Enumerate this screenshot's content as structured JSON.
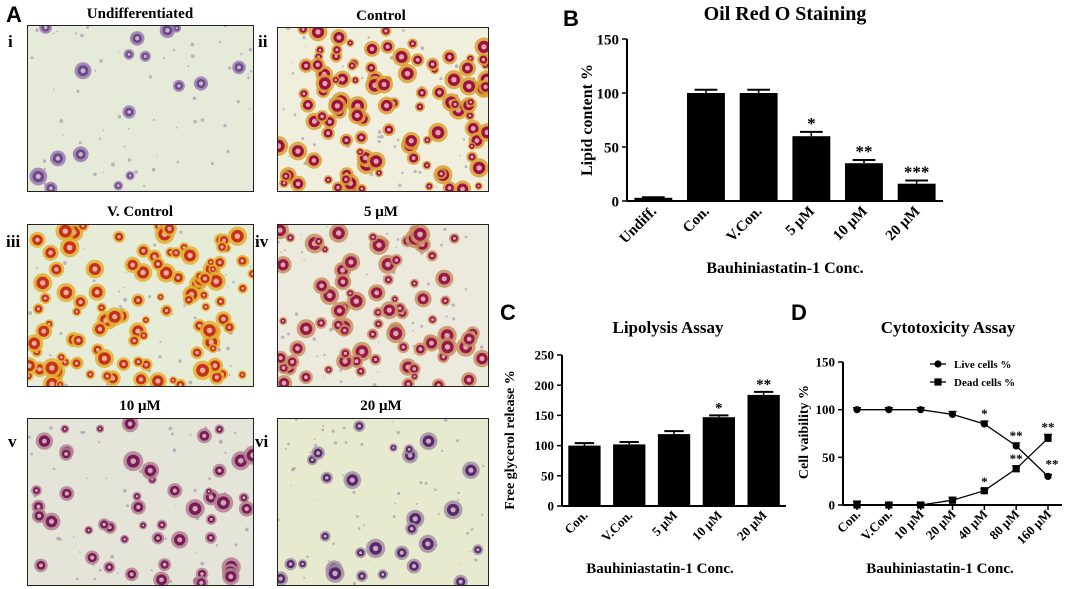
{
  "panel_letters": {
    "A": "A",
    "B": "B",
    "C": "C",
    "D": "D"
  },
  "micrographs": [
    {
      "roman": "i",
      "title": "Undifferentiated",
      "bg": "#e6ead8",
      "cell": "#6a4a8c",
      "rim": "#9a7ab0",
      "density": 0.15
    },
    {
      "roman": "ii",
      "title": "Control",
      "bg": "#f0eedd",
      "cell": "#a01040",
      "rim": "#d8a030",
      "density": 1.0
    },
    {
      "roman": "iii",
      "title": "V. Control",
      "bg": "#e6ecd8",
      "cell": "#c83018",
      "rim": "#e0b030",
      "density": 1.0
    },
    {
      "roman": "iv",
      "title": "5 μM",
      "bg": "#eceadc",
      "cell": "#9a1848",
      "rim": "#c89060",
      "density": 0.75
    },
    {
      "roman": "v",
      "title": "10 μM",
      "bg": "#e4e4d8",
      "cell": "#7a1a58",
      "rim": "#b08090",
      "density": 0.45
    },
    {
      "roman": "vi",
      "title": "20 μM",
      "bg": "#e8ead0",
      "cell": "#5a2870",
      "rim": "#a090a0",
      "density": 0.25
    }
  ],
  "chart_data": [
    {
      "panel": "B",
      "type": "bar",
      "title": "Oil Red O Staining",
      "xlabel": "Bauhiniastatin-1 Conc.",
      "ylabel": "Lipid content %",
      "ylim": [
        0,
        150
      ],
      "yticks": [
        0,
        50,
        100,
        150
      ],
      "categories": [
        "Undiff.",
        "Con.",
        "V.Con.",
        "5 μM",
        "10 μM",
        "20 μM"
      ],
      "values": [
        3,
        100,
        100,
        60,
        35,
        16
      ],
      "errors": [
        0.5,
        3,
        3,
        4,
        3,
        3
      ],
      "significance": [
        "",
        "",
        "",
        "*",
        "**",
        "***"
      ]
    },
    {
      "panel": "C",
      "type": "bar",
      "title": "Lipolysis Assay",
      "xlabel": "Bauhiniastatin-1 Conc.",
      "ylabel": "Free glycerol release %",
      "ylim": [
        0,
        250
      ],
      "yticks": [
        0,
        50,
        100,
        150,
        200,
        250
      ],
      "categories": [
        "Con.",
        "V.Con.",
        "5 μM",
        "10 μM",
        "20 μM"
      ],
      "values": [
        100,
        102,
        119,
        147,
        184
      ],
      "errors": [
        4,
        4,
        5,
        3,
        5
      ],
      "significance": [
        "",
        "",
        "",
        "*",
        "**"
      ]
    },
    {
      "panel": "D",
      "type": "line",
      "title": "Cytotoxicity Assay",
      "xlabel": "Bauhiniastatin-1 Conc.",
      "ylabel": "Cell vaibility %",
      "ylim": [
        0,
        150
      ],
      "yticks": [
        0,
        50,
        100,
        150
      ],
      "categories": [
        "Con.",
        "V.Con.",
        "10 μM",
        "20 μM",
        "40 μM",
        "80 μM",
        "160 μM"
      ],
      "legend_position": "top-right",
      "series": [
        {
          "name": "Live cells %",
          "marker": "circle",
          "values": [
            100,
            100,
            100,
            95,
            85,
            62,
            30
          ],
          "errors": [
            2,
            2,
            2,
            3,
            3,
            3,
            2
          ],
          "significance": [
            "",
            "",
            "",
            "",
            "*",
            "**",
            "**"
          ]
        },
        {
          "name": "Dead cells %",
          "marker": "square",
          "values": [
            0,
            0,
            0,
            5,
            15,
            38,
            70
          ],
          "errors": [
            4,
            2,
            2,
            3,
            2,
            3,
            4
          ],
          "significance": [
            "",
            "",
            "",
            "",
            "*",
            "**",
            "**"
          ]
        }
      ]
    }
  ]
}
